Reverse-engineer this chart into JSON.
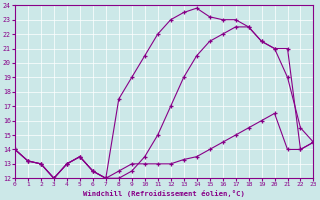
{
  "xlabel": "Windchill (Refroidissement éolien,°C)",
  "background_color": "#cce8e8",
  "line_color": "#880088",
  "xlim": [
    0,
    23
  ],
  "ylim": [
    12,
    24
  ],
  "xticks": [
    0,
    1,
    2,
    3,
    4,
    5,
    6,
    7,
    8,
    9,
    10,
    11,
    12,
    13,
    14,
    15,
    16,
    17,
    18,
    19,
    20,
    21,
    22,
    23
  ],
  "yticks": [
    12,
    13,
    14,
    15,
    16,
    17,
    18,
    19,
    20,
    21,
    22,
    23,
    24
  ],
  "line1_x": [
    0,
    1,
    2,
    3,
    4,
    5,
    6,
    7,
    8,
    9,
    10,
    11,
    12,
    13,
    14,
    15,
    16,
    17,
    18,
    19,
    20,
    21,
    22,
    23
  ],
  "line1_y": [
    14.0,
    13.2,
    13.0,
    12.0,
    13.0,
    13.5,
    12.5,
    12.0,
    12.5,
    13.0,
    13.0,
    13.0,
    13.0,
    13.3,
    13.5,
    14.0,
    14.5,
    15.0,
    15.5,
    16.0,
    16.5,
    14.0,
    14.0,
    14.5
  ],
  "line2_x": [
    0,
    1,
    2,
    3,
    4,
    5,
    6,
    7,
    8,
    9,
    10,
    11,
    12,
    13,
    14,
    15,
    16,
    17,
    18,
    19,
    20,
    21,
    22,
    23
  ],
  "line2_y": [
    14.0,
    13.2,
    13.0,
    12.0,
    13.0,
    13.5,
    12.5,
    12.0,
    12.0,
    12.5,
    13.5,
    15.0,
    17.0,
    19.0,
    20.5,
    21.5,
    22.0,
    22.5,
    22.5,
    21.5,
    21.0,
    19.0,
    15.5,
    14.5
  ],
  "line3_x": [
    0,
    1,
    2,
    3,
    4,
    5,
    6,
    7,
    8,
    9,
    10,
    11,
    12,
    13,
    14,
    15,
    16,
    17,
    18,
    19,
    20,
    21,
    22,
    23
  ],
  "line3_y": [
    14.0,
    13.2,
    13.0,
    12.0,
    13.0,
    13.5,
    12.5,
    12.0,
    17.5,
    19.0,
    20.5,
    22.0,
    23.0,
    23.5,
    23.8,
    23.2,
    23.0,
    23.0,
    22.5,
    21.5,
    21.0,
    21.0,
    14.0,
    14.5
  ]
}
